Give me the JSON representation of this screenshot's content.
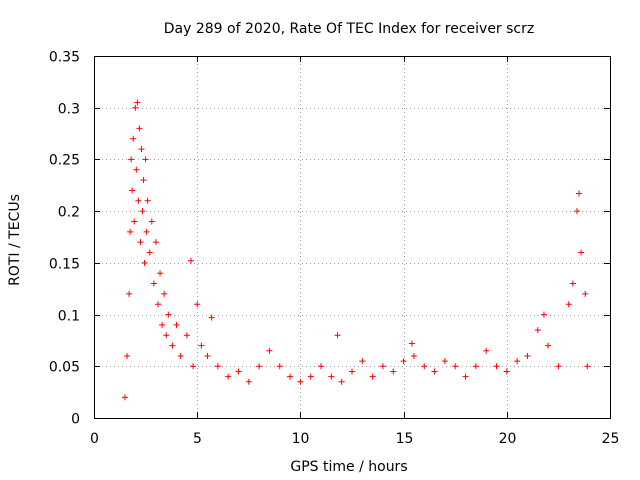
{
  "chart_data": {
    "type": "scatter",
    "title": "Day 289 of 2020, Rate Of TEC Index for receiver scrz",
    "xlabel": "GPS time / hours",
    "ylabel": "ROTI / TECUs",
    "xlim": [
      0,
      25
    ],
    "ylim": [
      0,
      0.35
    ],
    "xticks": [
      0,
      5,
      10,
      15,
      20,
      25
    ],
    "yticks": [
      0,
      0.05,
      0.1,
      0.15,
      0.2,
      0.25,
      0.3,
      0.35
    ],
    "xtick_labels": [
      "0",
      "5",
      "10",
      "15",
      "20",
      "25"
    ],
    "ytick_labels": [
      "0",
      "0.05",
      "0.1",
      "0.15",
      "0.2",
      "0.25",
      "0.3",
      "0.35"
    ],
    "grid": true,
    "marker": "plus",
    "color": "#ff0000",
    "series": [
      {
        "name": "ROTI",
        "points": [
          [
            1.5,
            0.02
          ],
          [
            1.6,
            0.06
          ],
          [
            1.7,
            0.12
          ],
          [
            1.75,
            0.18
          ],
          [
            1.8,
            0.25
          ],
          [
            1.85,
            0.22
          ],
          [
            1.9,
            0.27
          ],
          [
            1.95,
            0.19
          ],
          [
            2.0,
            0.3
          ],
          [
            2.05,
            0.24
          ],
          [
            2.1,
            0.305
          ],
          [
            2.15,
            0.21
          ],
          [
            2.2,
            0.28
          ],
          [
            2.25,
            0.17
          ],
          [
            2.3,
            0.26
          ],
          [
            2.35,
            0.2
          ],
          [
            2.4,
            0.23
          ],
          [
            2.45,
            0.15
          ],
          [
            2.5,
            0.25
          ],
          [
            2.55,
            0.18
          ],
          [
            2.6,
            0.21
          ],
          [
            2.7,
            0.16
          ],
          [
            2.8,
            0.19
          ],
          [
            2.9,
            0.13
          ],
          [
            3.0,
            0.17
          ],
          [
            3.1,
            0.11
          ],
          [
            3.2,
            0.14
          ],
          [
            3.3,
            0.09
          ],
          [
            3.4,
            0.12
          ],
          [
            3.5,
            0.08
          ],
          [
            3.6,
            0.1
          ],
          [
            3.8,
            0.07
          ],
          [
            4.0,
            0.09
          ],
          [
            4.2,
            0.06
          ],
          [
            4.5,
            0.08
          ],
          [
            4.7,
            0.152
          ],
          [
            4.8,
            0.05
          ],
          [
            5.0,
            0.11
          ],
          [
            5.2,
            0.07
          ],
          [
            5.5,
            0.06
          ],
          [
            5.7,
            0.097
          ],
          [
            6.0,
            0.05
          ],
          [
            6.5,
            0.04
          ],
          [
            7.0,
            0.045
          ],
          [
            7.5,
            0.035
          ],
          [
            8.0,
            0.05
          ],
          [
            8.5,
            0.065
          ],
          [
            9.0,
            0.05
          ],
          [
            9.5,
            0.04
          ],
          [
            10.0,
            0.035
          ],
          [
            10.5,
            0.04
          ],
          [
            11.0,
            0.05
          ],
          [
            11.5,
            0.04
          ],
          [
            11.8,
            0.08
          ],
          [
            12.0,
            0.035
          ],
          [
            12.5,
            0.045
          ],
          [
            13.0,
            0.055
          ],
          [
            13.5,
            0.04
          ],
          [
            14.0,
            0.05
          ],
          [
            14.5,
            0.045
          ],
          [
            15.0,
            0.055
          ],
          [
            15.4,
            0.072
          ],
          [
            15.5,
            0.06
          ],
          [
            16.0,
            0.05
          ],
          [
            16.5,
            0.045
          ],
          [
            17.0,
            0.055
          ],
          [
            17.5,
            0.05
          ],
          [
            18.0,
            0.04
          ],
          [
            18.5,
            0.05
          ],
          [
            19.0,
            0.065
          ],
          [
            19.5,
            0.05
          ],
          [
            20.0,
            0.045
          ],
          [
            20.5,
            0.055
          ],
          [
            21.0,
            0.06
          ],
          [
            21.5,
            0.085
          ],
          [
            21.8,
            0.1
          ],
          [
            22.0,
            0.07
          ],
          [
            22.5,
            0.05
          ],
          [
            23.0,
            0.11
          ],
          [
            23.2,
            0.13
          ],
          [
            23.4,
            0.2
          ],
          [
            23.5,
            0.217
          ],
          [
            23.6,
            0.16
          ],
          [
            23.8,
            0.12
          ],
          [
            23.9,
            0.05
          ]
        ]
      }
    ]
  }
}
